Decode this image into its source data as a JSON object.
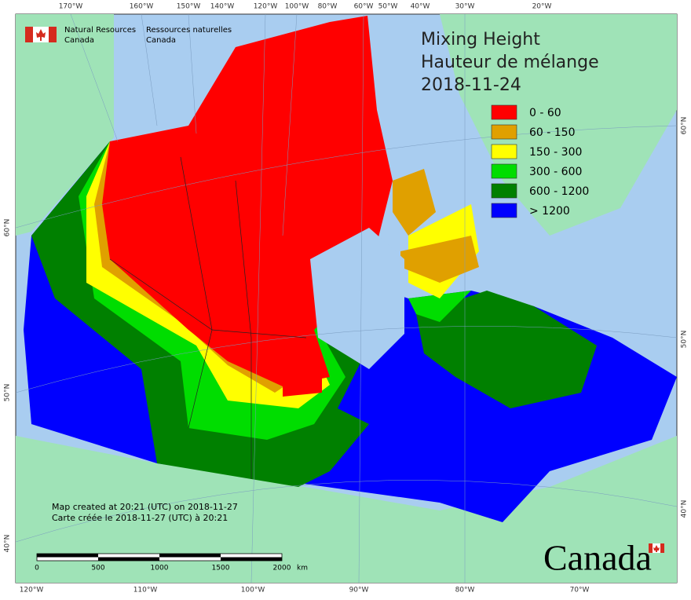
{
  "header": {
    "org_en": [
      "Natural Resources",
      "Canada"
    ],
    "org_fr": [
      "Ressources naturelles",
      "Canada"
    ]
  },
  "title": [
    "Mixing Height",
    "Hauteur de mélange",
    "2018-11-24"
  ],
  "legend": [
    {
      "label": "0 - 60",
      "color": "#ff0000"
    },
    {
      "label": "60 - 150",
      "color": "#e0a000"
    },
    {
      "label": "150 - 300",
      "color": "#ffff00"
    },
    {
      "label": "300 - 600",
      "color": "#00dd00"
    },
    {
      "label": "600 - 1200",
      "color": "#008000"
    },
    {
      "label": "> 1200",
      "color": "#0000ff"
    }
  ],
  "graticule": {
    "top": [
      "170°W",
      "160°W",
      "150°W",
      "140°W",
      "120°W",
      "100°W",
      "80°W",
      "60°W",
      "50°W",
      "40°W",
      "30°W",
      "20°W"
    ],
    "bottom": [
      "120°W",
      "110°W",
      "100°W",
      "90°W",
      "80°W",
      "70°W"
    ],
    "left": [
      "60°N",
      "50°N",
      "40°N"
    ],
    "right": [
      "60°N",
      "50°N",
      "40°N"
    ]
  },
  "footnote": [
    "Map created at 20:21 (UTC) on 2018-11-27",
    "Carte créée le 2018-11-27 (UTC) à 20:21"
  ],
  "scale_bar": {
    "labels": [
      0,
      500,
      1000,
      1500,
      2000
    ],
    "unit": "km"
  },
  "wordmark": "Canada"
}
